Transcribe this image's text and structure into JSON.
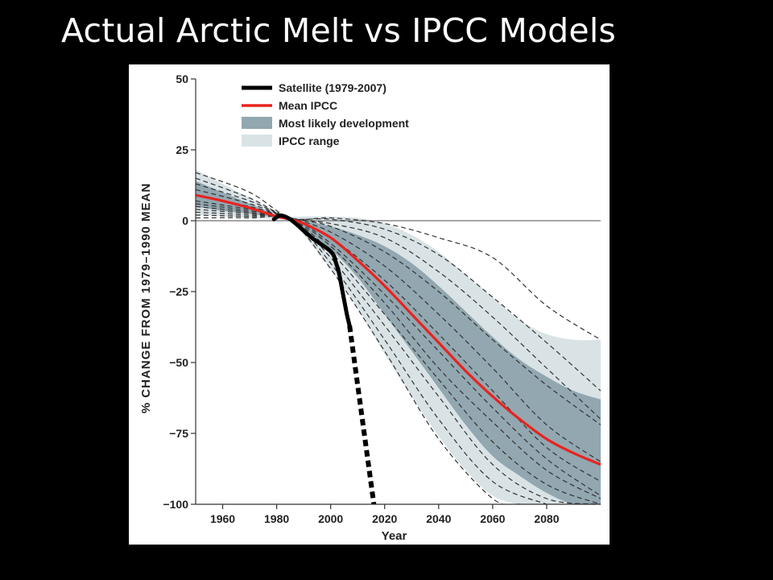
{
  "slide": {
    "title": "Actual Arctic Melt vs IPCC Models"
  },
  "colors": {
    "background": "#000000",
    "panel": "#ffffff",
    "satellite": "#000000",
    "mean_ipcc": "#e8231f",
    "most_likely": "#92a7b0",
    "ipcc_range": "#d9e3e6",
    "model_runs": "#333333",
    "zero_line": "#888888"
  },
  "chart_data": {
    "type": "line",
    "title": "",
    "xlabel": "Year",
    "ylabel": "% CHANGE FROM 1979–1990 MEAN",
    "xlim": [
      1950,
      2100
    ],
    "ylim": [
      -100,
      50
    ],
    "x_ticks": [
      1960,
      1980,
      2000,
      2020,
      2040,
      2060,
      2080
    ],
    "y_ticks": [
      50,
      25,
      0,
      -25,
      -50,
      -75,
      -100
    ],
    "y_tick_labels": [
      "50",
      "25",
      "0",
      "−25",
      "−50",
      "−75",
      "−100"
    ],
    "reference_line": 0,
    "legend": [
      {
        "label": "Satellite (1979-2007)",
        "style": "thick-line",
        "color": "#000000"
      },
      {
        "label": "Mean IPCC",
        "style": "line",
        "color": "#e8231f"
      },
      {
        "label": "Most likely development",
        "style": "band",
        "color": "#92a7b0"
      },
      {
        "label": "IPCC range",
        "style": "band",
        "color": "#d9e3e6"
      }
    ],
    "legend_position": "top-left",
    "series": [
      {
        "name": "Satellite (1979-2007)",
        "x": [
          1979,
          1981,
          1983,
          1985,
          1987,
          1990,
          1993,
          1996,
          1999,
          2001,
          2002,
          2003,
          2004,
          2005,
          2006,
          2007
        ],
        "y": [
          0.5,
          1.8,
          1.5,
          0.5,
          -1,
          -3.5,
          -6,
          -8,
          -10,
          -12,
          -15,
          -18,
          -23,
          -28,
          -33,
          -37
        ]
      },
      {
        "name": "Satellite extrapolation",
        "x": [
          2007,
          2016
        ],
        "y": [
          -37,
          -100
        ]
      },
      {
        "name": "Mean IPCC",
        "x": [
          1950,
          1960,
          1970,
          1980,
          1985,
          1990,
          2000,
          2010,
          2020,
          2030,
          2040,
          2050,
          2060,
          2070,
          2080,
          2090,
          2100
        ],
        "y": [
          9,
          7,
          4.5,
          1.5,
          0.5,
          -1,
          -6,
          -14,
          -23,
          -33,
          -43,
          -53,
          -62,
          -70,
          -77,
          -82,
          -86
        ]
      },
      {
        "name": "Most likely development",
        "x": [
          1950,
          1960,
          1970,
          1980,
          1985,
          1990,
          2000,
          2010,
          2020,
          2030,
          2040,
          2050,
          2060,
          2070,
          2080,
          2090,
          2100
        ],
        "upper": [
          14,
          10,
          6,
          2,
          0.5,
          0,
          -2,
          -5,
          -9,
          -15,
          -23,
          -32,
          -41,
          -49,
          -55,
          -60,
          -63
        ],
        "lower": [
          5,
          3.5,
          2.5,
          1,
          0.5,
          -3,
          -10,
          -20,
          -33,
          -46,
          -59,
          -72,
          -83,
          -90,
          -96,
          -100,
          -100
        ]
      },
      {
        "name": "IPCC range",
        "x": [
          1950,
          1960,
          1970,
          1980,
          1985,
          1990,
          2000,
          2010,
          2020,
          2030,
          2040,
          2050,
          2060,
          2070,
          2080,
          2090,
          2100
        ],
        "upper": [
          18,
          13,
          8,
          3,
          1.5,
          1.5,
          1.5,
          1,
          -1,
          -5,
          -11,
          -19,
          -27,
          -35,
          -40,
          -42,
          -42
        ],
        "lower": [
          2,
          1.5,
          1,
          0.5,
          0,
          -5,
          -17,
          -31,
          -47,
          -62,
          -76,
          -88,
          -97,
          -100,
          -100,
          -100,
          -100
        ]
      },
      {
        "name": "Model run 1",
        "x": [
          1950,
          1970,
          1985,
          2000,
          2020,
          2040,
          2060,
          2080,
          2100
        ],
        "y": [
          17,
          10,
          1,
          1,
          -1,
          -6,
          -13,
          -30,
          -42
        ]
      },
      {
        "name": "Model run 2",
        "x": [
          1950,
          1970,
          1985,
          2000,
          2020,
          2040,
          2060,
          2080,
          2100
        ],
        "y": [
          15,
          8,
          1,
          0.5,
          -3,
          -12,
          -27,
          -43,
          -60
        ]
      },
      {
        "name": "Model run 3",
        "x": [
          1950,
          1970,
          1985,
          2000,
          2020,
          2040,
          2060,
          2080,
          2100
        ],
        "y": [
          13,
          7,
          1,
          -1,
          -6,
          -18,
          -34,
          -52,
          -70
        ]
      },
      {
        "name": "Model run 4",
        "x": [
          1950,
          1970,
          1985,
          2000,
          2020,
          2040,
          2060,
          2080,
          2100
        ],
        "y": [
          11,
          6,
          1,
          -2,
          -11,
          -25,
          -42,
          -58,
          -72
        ]
      },
      {
        "name": "Model run 5",
        "x": [
          1950,
          1970,
          1985,
          2000,
          2020,
          2040,
          2060,
          2080,
          2100
        ],
        "y": [
          9,
          5,
          1,
          -4,
          -16,
          -33,
          -52,
          -72,
          -85
        ]
      },
      {
        "name": "Model run 6",
        "x": [
          1950,
          1970,
          1985,
          2000,
          2020,
          2040,
          2060,
          2080,
          2100
        ],
        "y": [
          7,
          4,
          1,
          -6,
          -21,
          -40,
          -60,
          -80,
          -92
        ]
      },
      {
        "name": "Model run 7",
        "x": [
          1950,
          1970,
          1985,
          2000,
          2020,
          2040,
          2060,
          2080,
          2100
        ],
        "y": [
          6,
          3.5,
          1,
          -8,
          -26,
          -46,
          -66,
          -84,
          -97
        ]
      },
      {
        "name": "Model run 8",
        "x": [
          1950,
          1970,
          1985,
          2000,
          2020,
          2040,
          2060,
          2080,
          2100
        ],
        "y": [
          5,
          3,
          0.5,
          -9,
          -29,
          -52,
          -71,
          -88,
          -98
        ]
      },
      {
        "name": "Model run 9",
        "x": [
          1950,
          1970,
          1985,
          2000,
          2020,
          2040,
          2060,
          2080,
          2100
        ],
        "y": [
          4,
          2.5,
          0.5,
          -11,
          -33,
          -56,
          -78,
          -93,
          -100
        ]
      },
      {
        "name": "Model run 10",
        "x": [
          1950,
          1970,
          1985,
          2000,
          2020,
          2040,
          2060,
          2080,
          2100
        ],
        "y": [
          3,
          2,
          0.5,
          -13,
          -37,
          -62,
          -86,
          -98,
          -100
        ]
      },
      {
        "name": "Model run 11",
        "x": [
          1950,
          1970,
          1985,
          2000,
          2020,
          2040,
          2060,
          2080
        ],
        "y": [
          2,
          1.5,
          0.5,
          -15,
          -42,
          -70,
          -92,
          -100
        ]
      },
      {
        "name": "Model run 12",
        "x": [
          1950,
          1970,
          1985,
          2000,
          2020,
          2040,
          2060,
          2070
        ],
        "y": [
          1,
          1,
          0,
          -17,
          -46,
          -77,
          -98,
          -100
        ]
      }
    ]
  }
}
